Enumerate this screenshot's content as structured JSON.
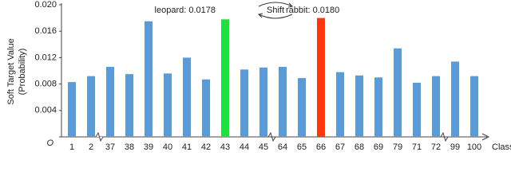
{
  "chart_data": {
    "type": "bar",
    "categories": [
      "1",
      "2",
      "37",
      "38",
      "39",
      "40",
      "41",
      "42",
      "43",
      "44",
      "45",
      "64",
      "65",
      "66",
      "67",
      "68",
      "69",
      "79",
      "71",
      "72",
      "99",
      "100"
    ],
    "values": [
      0.0083,
      0.0092,
      0.0106,
      0.0095,
      0.0175,
      0.0096,
      0.012,
      0.0087,
      0.0178,
      0.0102,
      0.0105,
      0.0106,
      0.0089,
      0.018,
      0.0098,
      0.0093,
      0.009,
      0.0134,
      0.0082,
      0.0092,
      0.0114,
      0.0092
    ],
    "colors": [
      "#5b9bd5",
      "#5b9bd5",
      "#5b9bd5",
      "#5b9bd5",
      "#5b9bd5",
      "#5b9bd5",
      "#5b9bd5",
      "#5b9bd5",
      "#22e03c",
      "#5b9bd5",
      "#5b9bd5",
      "#5b9bd5",
      "#5b9bd5",
      "#ff3a0a",
      "#5b9bd5",
      "#5b9bd5",
      "#5b9bd5",
      "#5b9bd5",
      "#5b9bd5",
      "#5b9bd5",
      "#5b9bd5",
      "#5b9bd5"
    ],
    "ylim": [
      0,
      0.02
    ],
    "yticks": [
      {
        "value": 0,
        "label": "O"
      },
      0.004,
      0.008,
      0.012,
      0.016,
      {
        "value": 0.02,
        "label": "0.020"
      }
    ],
    "y_label": [
      "Soft Target Value",
      "(Probability)"
    ],
    "x_label": "Class",
    "annotations": [
      "leopard: 0.0178",
      "Shift",
      "rabbit: 0.0180"
    ]
  }
}
